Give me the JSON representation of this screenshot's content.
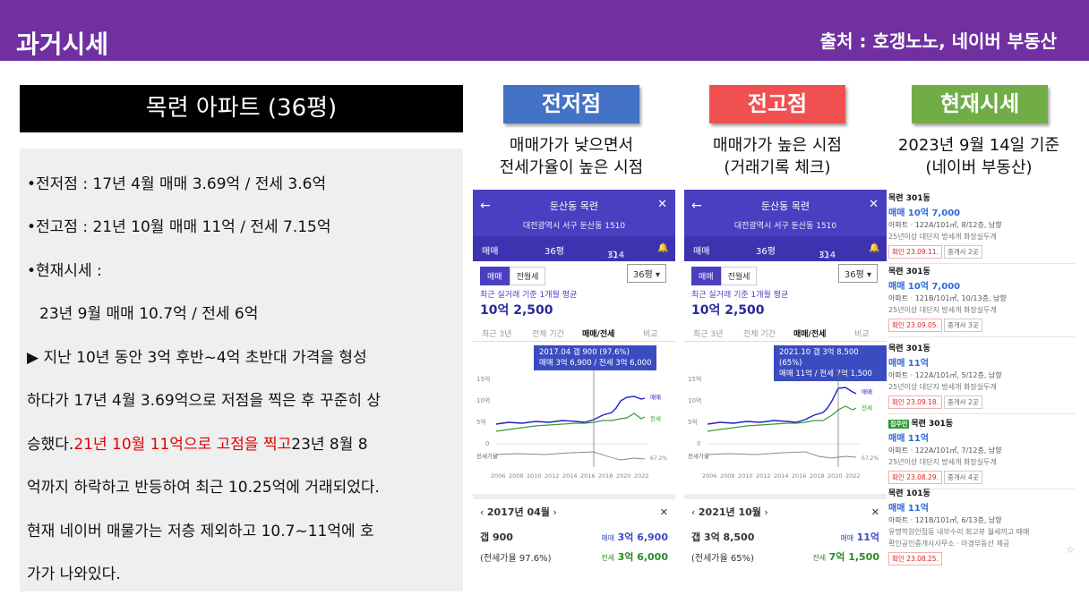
{
  "header": {
    "title": "과거시세",
    "source": "출처 : 호갱노노, 네이버 부동산"
  },
  "apartment": {
    "title": "목련 아파트 (36평)"
  },
  "summary": {
    "low_line": "•전저점 : 17년 4월 매매 3.69억 / 전세 3.6억",
    "high_line": "•전고점 : 21년 10월 매매 11억 / 전세 7.15억",
    "current_label": "•현재시세 :",
    "current_line": "23년 9월 매매 10.7억 / 전세 6억",
    "para1": "▶ 지난 10년 동안 3억 후반~4억 초반대 가격을 형성",
    "para2": "하다가 17년 4월 3.69억으로 저점을 찍은 후 꾸준히 상",
    "para3_pre": "승했다. ",
    "para3_red": "21년 10월 11억으로 고점을 찍고",
    "para3_post": " 23년 8월 8",
    "para4": "억까지 하락하고 반등하여 최근 10.25억에 거래되었다.",
    "para5": "현재 네이버 매물가는 저층 제외하고 10.7~11억에 호",
    "para6": "가가 나와있다."
  },
  "sections": {
    "low": {
      "label": "전저점",
      "color": "#4472c4",
      "cap1": "매매가가 낮으면서",
      "cap2": "전세가율이 높은 시점"
    },
    "high": {
      "label": "전고점",
      "color": "#f05050",
      "cap1": "매매가가 높은 시점",
      "cap2": "(거래기록 체크)"
    },
    "current": {
      "label": "현재시세",
      "color": "#70ad47",
      "cap1": "2023년 9월 14일 기준",
      "cap2": "(네이버 부동산)"
    }
  },
  "phone_common": {
    "name": "둔산동 목련",
    "address": "대전광역시 서구 둔산동 1510",
    "tab_trade": "매매",
    "tab_size": "36평",
    "tab_count": "314",
    "seg_trade": "매매",
    "seg_jeonse": "전월세",
    "size_select": "36평",
    "avg_label": "최근 실거래 기준 1개월 평균",
    "avg_value": "10억 2,500",
    "period_tabs": [
      "최근 3년",
      "전체 기간",
      "매매/전세",
      "비교"
    ],
    "y_ticks": [
      "15억",
      "10억",
      "5억",
      "0"
    ],
    "x_ticks": [
      "2006",
      "2008",
      "2010",
      "2012",
      "2014",
      "2016",
      "2018",
      "2020",
      "2022"
    ],
    "legend_trade": "매매",
    "legend_jeonse": "전세",
    "legend_ratio": "전세가율",
    "ratio_value": "67.2%"
  },
  "phone_low": {
    "tip1": "2017.04 갭 900 (97.6%)",
    "tip2": "매매 3억 6,900 / 전세 3억 6,000",
    "month": "2017년 04월",
    "gap": "갭 900",
    "ratio": "(전세가율 97.6%)",
    "trade_label": "매매",
    "trade": "3억 6,900",
    "jeonse_label": "전세",
    "jeonse": "3억 6,000"
  },
  "phone_high": {
    "tip1": "2021.10 갭 3억 8,500 (65%)",
    "tip2": "매매 11억 / 전세 7억 1,500",
    "month": "2021년 10월",
    "gap": "갭 3억 8,500",
    "ratio": "(전세가율 65%)",
    "trade_label": "매매",
    "trade": "11억",
    "jeonse_label": "전세",
    "jeonse": "7억 1,500"
  },
  "listings": [
    {
      "name": "목련 301동",
      "price": "매매 10억 7,000",
      "spec": "아파트 · 122A/101㎡, 8/12층, 남향",
      "tags": "25년이상 대단지 방세개 화장실두개",
      "date": "확인 23.09.11.",
      "extra": "중개사 2곳"
    },
    {
      "name": "목련 301동",
      "price": "매매 10억 7,000",
      "spec": "아파트 · 121B/101㎡, 10/13층, 남향",
      "tags": "25년이상 대단지 방세개 화장실두개",
      "date": "확인 23.09.05.",
      "extra": "중개사 3곳"
    },
    {
      "name": "목련 301동",
      "price": "매매 11억",
      "spec": "아파트 · 122A/101㎡, 5/12층, 남향",
      "tags": "25년이상 대단지 방세개 화장실두개",
      "date": "확인 23.09.18.",
      "extra": "중개사 2곳"
    },
    {
      "name": "목련 301동",
      "badge": "집주인",
      "price": "매매 11억",
      "spec": "아파트 · 122A/101㎡, 7/12층, 남향",
      "tags": "25년이상 대단지 방세개 화장실두개",
      "date": "확인 23.08.29.",
      "extra": "중개사 4곳"
    },
    {
      "name": "목련 101동",
      "price": "매매 11억",
      "spec": "아파트 · 121B/101㎡, 6/13층, 남향",
      "tags": "유명학원인접동 내부수리 최고뷰 월세끼고 매매",
      "agent": "확인공인중개사사무소 · 아경부동산 제공",
      "date": "확인 23.08.25."
    }
  ]
}
